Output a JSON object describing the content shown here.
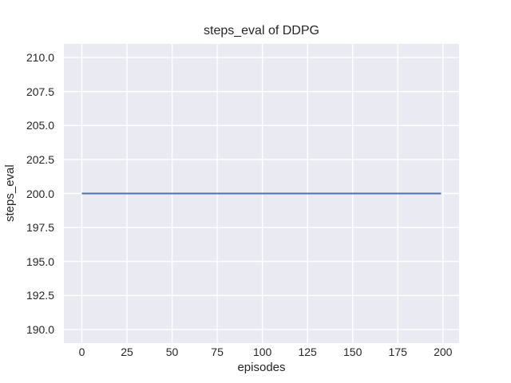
{
  "chart_data": {
    "type": "line",
    "title": "steps_eval of DDPG",
    "xlabel": "episodes",
    "ylabel": "steps_eval",
    "xlim": [
      -9.95,
      208.95
    ],
    "ylim": [
      189,
      211
    ],
    "x_ticks": [
      0,
      25,
      50,
      75,
      100,
      125,
      150,
      175,
      200
    ],
    "x_tick_labels": [
      "0",
      "25",
      "50",
      "75",
      "100",
      "125",
      "150",
      "175",
      "200"
    ],
    "y_ticks": [
      190.0,
      192.5,
      195.0,
      197.5,
      200.0,
      202.5,
      205.0,
      207.5,
      210.0
    ],
    "y_tick_labels": [
      "190.0",
      "192.5",
      "195.0",
      "197.5",
      "200.0",
      "202.5",
      "205.0",
      "207.5",
      "210.0"
    ],
    "grid": true,
    "legend_position": "none",
    "plot_background": "#eaeaf2",
    "grid_color": "#ffffff",
    "text_color": "#262626",
    "series": [
      {
        "color": "#4c72b0",
        "linewidth": 2,
        "x": [
          0,
          199
        ],
        "y": [
          200,
          200
        ]
      }
    ]
  }
}
